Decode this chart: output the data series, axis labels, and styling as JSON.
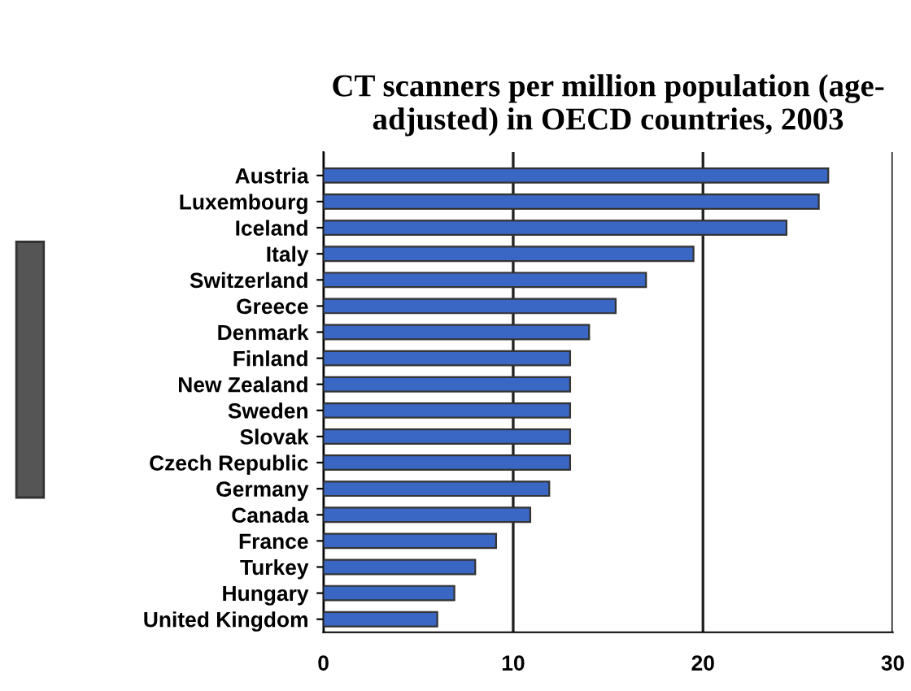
{
  "chart_data": {
    "type": "bar",
    "orientation": "horizontal",
    "title": "CT scanners per million population (age-\nadjusted) in OECD countries, 2003",
    "categories": [
      "Austria",
      "Luxembourg",
      "Iceland",
      "Italy",
      "Switzerland",
      "Greece",
      "Denmark",
      "Finland",
      "New Zealand",
      "Sweden",
      "Slovak",
      "Czech Republic",
      "Germany",
      "Canada",
      "France",
      "Turkey",
      "Hungary",
      "United Kingdom"
    ],
    "values": [
      26.6,
      26.1,
      24.4,
      19.5,
      17.0,
      15.4,
      14.0,
      13.0,
      13.0,
      13.0,
      13.0,
      13.0,
      11.9,
      10.9,
      9.1,
      8.0,
      6.9,
      6.0
    ],
    "color": "#3a66c4",
    "xlim": [
      0,
      30
    ],
    "xticks": [
      0,
      10,
      20,
      30
    ],
    "grid": "x"
  }
}
